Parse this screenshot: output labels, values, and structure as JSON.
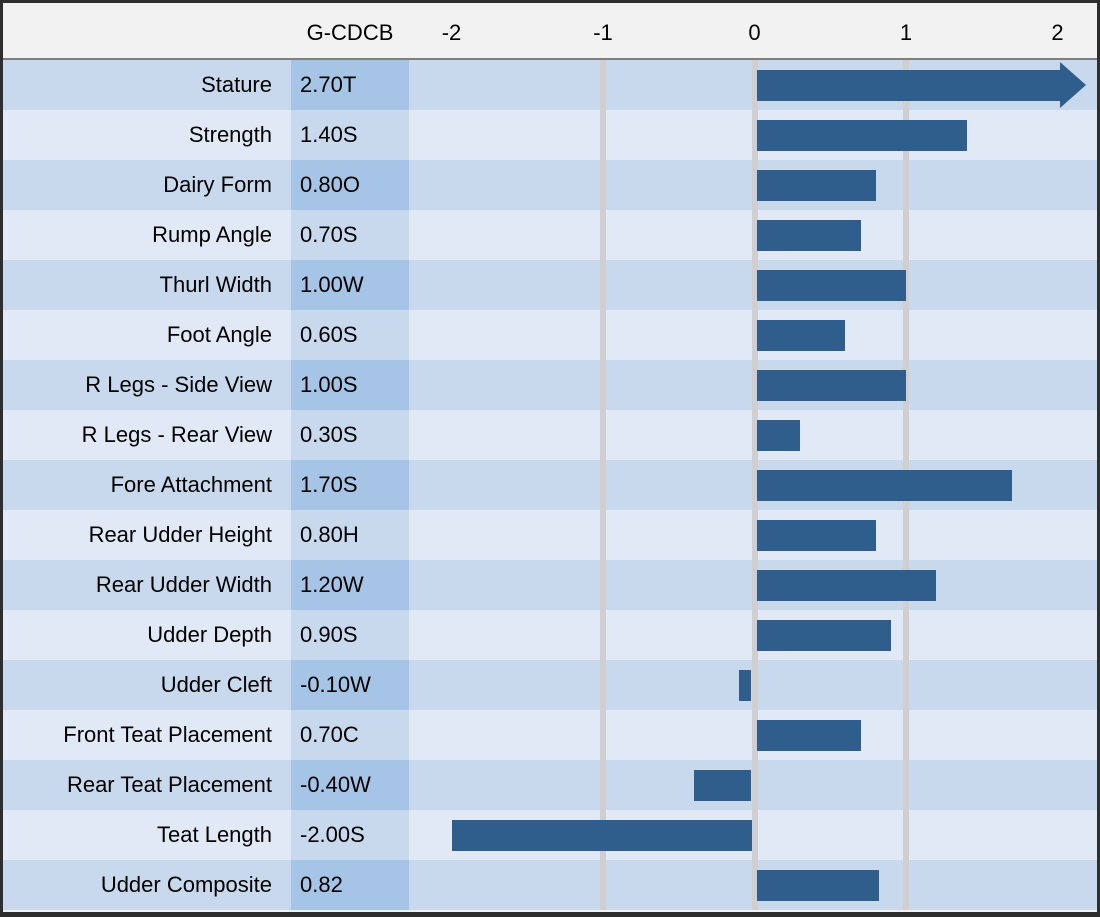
{
  "header": {
    "value_col_label": "G-CDCB"
  },
  "axis": {
    "tick_labels": [
      "-2",
      "-1",
      "0",
      "1",
      "2"
    ],
    "tick_values": [
      -2,
      -1,
      0,
      1,
      2
    ],
    "gridline_values": [
      -1,
      0,
      1
    ],
    "min": -2.28,
    "max": 2.26
  },
  "chart_data": {
    "type": "bar",
    "orientation": "horizontal",
    "title": "",
    "xlabel": "",
    "ylabel": "",
    "xlim": [
      -2.28,
      2.26
    ],
    "grid": "vertical-at--1-0-1",
    "legend": "none",
    "value_column_header": "G-CDCB",
    "categories": [
      "Stature",
      "Strength",
      "Dairy Form",
      "Rump Angle",
      "Thurl Width",
      "Foot Angle",
      "R Legs - Side View",
      "R Legs - Rear View",
      "Fore Attachment",
      "Rear Udder Height",
      "Rear Udder Width",
      "Udder Depth",
      "Udder Cleft",
      "Front Teat Placement",
      "Rear Teat Placement",
      "Teat Length",
      "Udder Composite"
    ],
    "values": [
      2.7,
      1.4,
      0.8,
      0.7,
      1.0,
      0.6,
      1.0,
      0.3,
      1.7,
      0.8,
      1.2,
      0.9,
      -0.1,
      0.7,
      -0.4,
      -2.0,
      0.82
    ],
    "value_labels": [
      "2.70T",
      "1.40S",
      "0.80O",
      "0.70S",
      "1.00W",
      "0.60S",
      "1.00S",
      "0.30S",
      "1.70S",
      "0.80H",
      "1.20W",
      "0.90S",
      "-0.10W",
      "0.70C",
      "-0.40W",
      "-2.00S",
      "0.82"
    ],
    "clipped_bars_with_arrow": [
      "Stature"
    ]
  },
  "rows": [
    {
      "label": "Stature",
      "value_label": "2.70T",
      "value": 2.7
    },
    {
      "label": "Strength",
      "value_label": "1.40S",
      "value": 1.4
    },
    {
      "label": "Dairy Form",
      "value_label": "0.80O",
      "value": 0.8
    },
    {
      "label": "Rump Angle",
      "value_label": "0.70S",
      "value": 0.7
    },
    {
      "label": "Thurl Width",
      "value_label": "1.00W",
      "value": 1.0
    },
    {
      "label": "Foot Angle",
      "value_label": "0.60S",
      "value": 0.6
    },
    {
      "label": "R Legs - Side View",
      "value_label": "1.00S",
      "value": 1.0
    },
    {
      "label": "R Legs - Rear View",
      "value_label": "0.30S",
      "value": 0.3
    },
    {
      "label": "Fore Attachment",
      "value_label": "1.70S",
      "value": 1.7
    },
    {
      "label": "Rear Udder Height",
      "value_label": "0.80H",
      "value": 0.8
    },
    {
      "label": "Rear Udder Width",
      "value_label": "1.20W",
      "value": 1.2
    },
    {
      "label": "Udder Depth",
      "value_label": "0.90S",
      "value": 0.9
    },
    {
      "label": "Udder Cleft",
      "value_label": "-0.10W",
      "value": -0.1
    },
    {
      "label": "Front Teat Placement",
      "value_label": "0.70C",
      "value": 0.7
    },
    {
      "label": "Rear Teat Placement",
      "value_label": "-0.40W",
      "value": -0.4
    },
    {
      "label": "Teat Length",
      "value_label": "-2.00S",
      "value": -2.0
    },
    {
      "label": "Udder Composite",
      "value_label": "0.82",
      "value": 0.82
    }
  ],
  "colors": {
    "bar": "#2f5d8c",
    "row_dark": "#c8d9ed",
    "row_light": "#e0e9f5",
    "value_cell_dark": "#a6c4e5",
    "value_cell_light": "#c8d9ed",
    "gridline": "#d0cece",
    "header_bg": "#f2f2f2",
    "outer_border": "#2e2e2e"
  }
}
